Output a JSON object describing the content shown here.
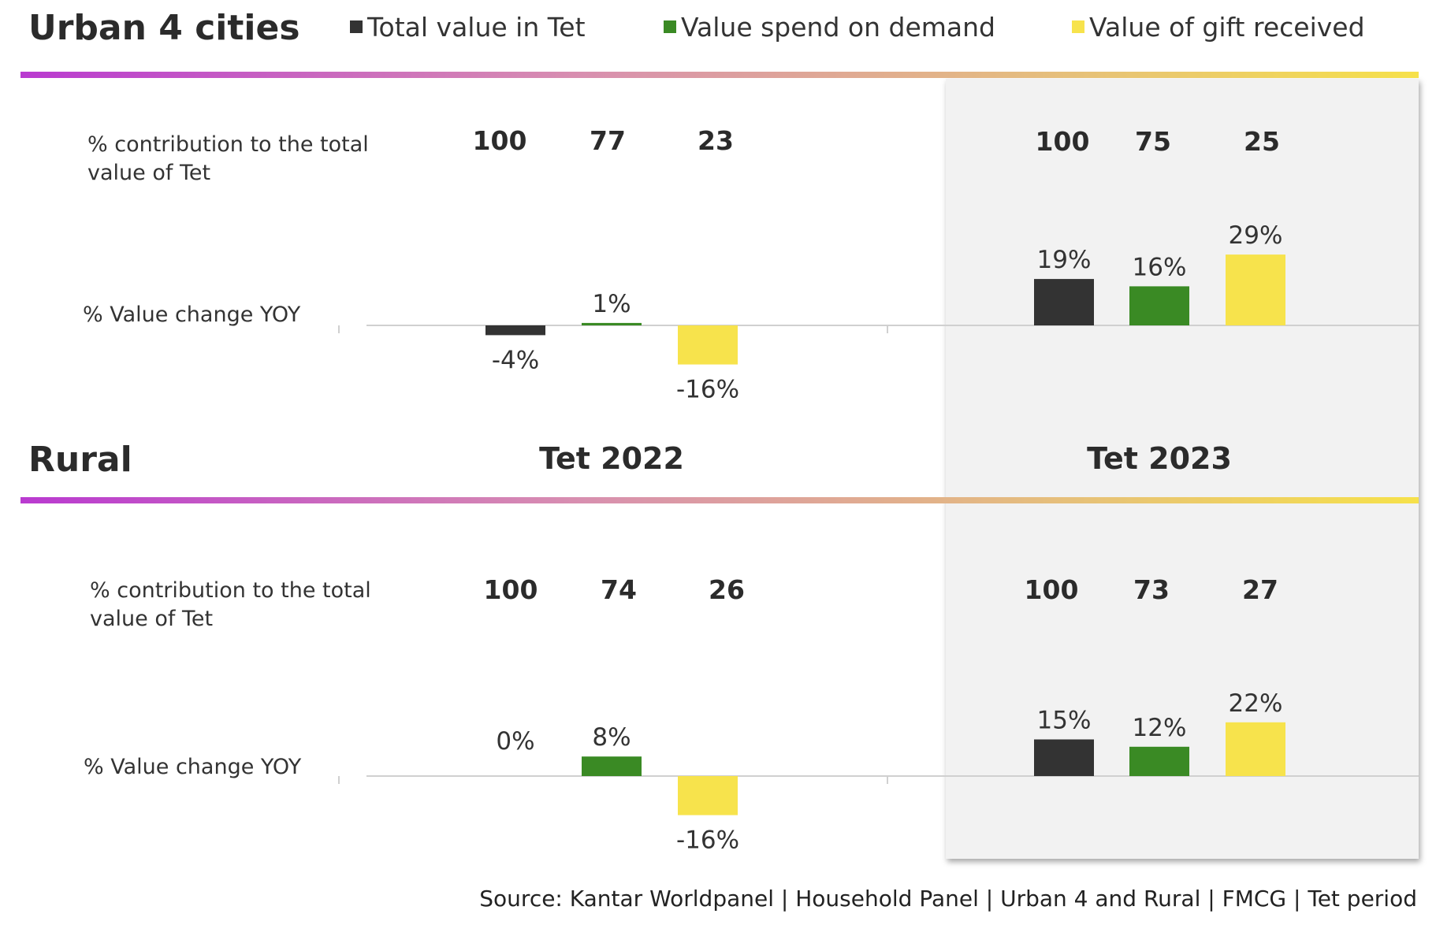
{
  "legend": [
    {
      "label": "Total value in Tet",
      "color": "#333333"
    },
    {
      "label": "Value spend on demand",
      "color": "#3a8a24"
    },
    {
      "label": "Value of gift received",
      "color": "#f7e34c"
    }
  ],
  "sections": {
    "urban": {
      "title": "Urban 4 cities",
      "contrib_label": "% contribution to the total value of Tet",
      "change_label": "% Value change YOY"
    },
    "rural": {
      "title": "Rural",
      "contrib_label": "% contribution to the total value of Tet",
      "change_label": "% Value change YOY"
    }
  },
  "periods": [
    "Tet 2022",
    "Tet 2023"
  ],
  "source": "Source: Kantar Worldpanel | Household Panel | Urban 4 and Rural | FMCG | Tet period",
  "chart_data": [
    {
      "type": "bar",
      "title": "Urban 4 cities",
      "categories": [
        "Tet 2022",
        "Tet 2023"
      ],
      "series": [
        {
          "name": "Total value in Tet",
          "color": "#333333",
          "values": [
            -4,
            19
          ],
          "labels": [
            "-4%",
            "19%"
          ],
          "contribution": [
            "100",
            "100"
          ]
        },
        {
          "name": "Value spend on demand",
          "color": "#3a8a24",
          "values": [
            1,
            16
          ],
          "labels": [
            "1%",
            "16%"
          ],
          "contribution": [
            "77",
            "75"
          ]
        },
        {
          "name": "Value of gift received",
          "color": "#f7e34c",
          "values": [
            -16,
            29
          ],
          "labels": [
            "-16%",
            "29%"
          ],
          "contribution": [
            "23",
            "25"
          ]
        }
      ],
      "ylabel": "% Value change YOY"
    },
    {
      "type": "bar",
      "title": "Rural",
      "categories": [
        "Tet 2022",
        "Tet 2023"
      ],
      "series": [
        {
          "name": "Total value in Tet",
          "color": "#333333",
          "values": [
            0,
            15
          ],
          "labels": [
            "0%",
            "15%"
          ],
          "contribution": [
            "100",
            "100"
          ]
        },
        {
          "name": "Value spend on demand",
          "color": "#3a8a24",
          "values": [
            8,
            12
          ],
          "labels": [
            "8%",
            "12%"
          ],
          "contribution": [
            "74",
            "73"
          ]
        },
        {
          "name": "Value of gift received",
          "color": "#f7e34c",
          "values": [
            -16,
            22
          ],
          "labels": [
            "-16%",
            "22%"
          ],
          "contribution": [
            "26",
            "27"
          ]
        }
      ],
      "ylabel": "% Value change YOY"
    }
  ]
}
